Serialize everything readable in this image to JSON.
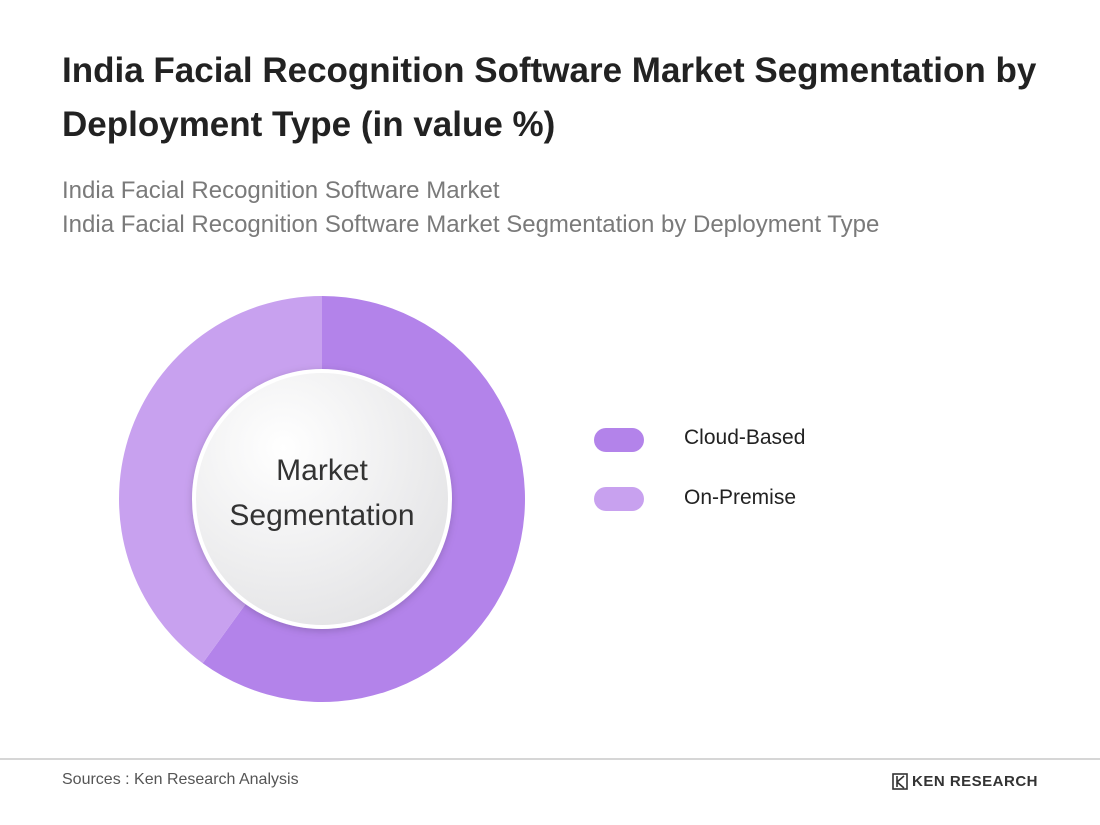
{
  "chart_data": {
    "type": "donut",
    "title": "India Facial Recognition Software Market Segmentation by Deployment Type (in value %)",
    "subtitle": [
      "India Facial Recognition Software Market",
      "India Facial Recognition Software Market Segmentation by Deployment Type"
    ],
    "center_label": "Market Segmentation",
    "categories": [
      "Cloud-Based",
      "On-Premise"
    ],
    "values": [
      60,
      40
    ],
    "colors": [
      "#b383ea",
      "#c8a1ef"
    ],
    "source": "Sources : Ken Research Analysis",
    "brand": "KEN RESEARCH"
  }
}
